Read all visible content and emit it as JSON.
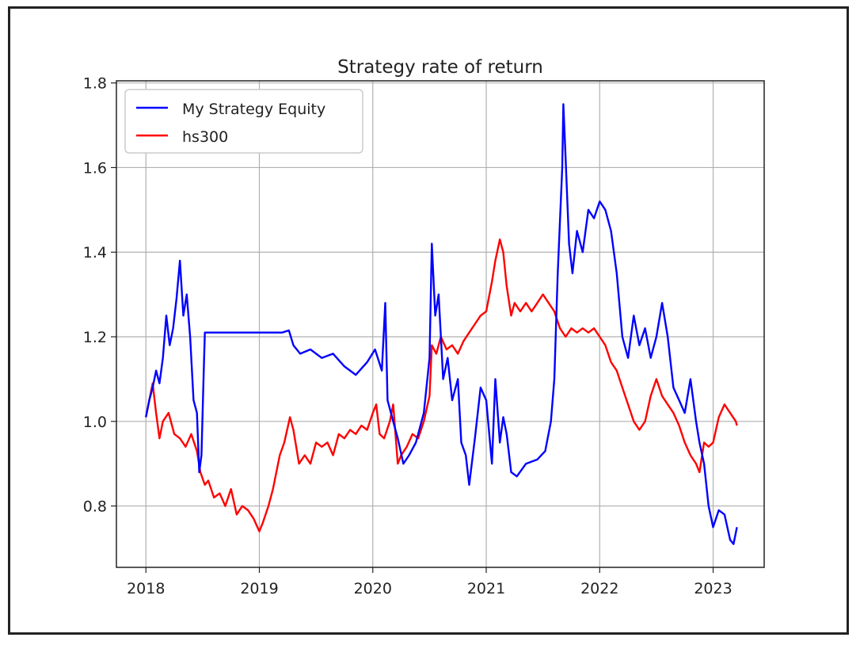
{
  "chart_data": {
    "type": "line",
    "title": "Strategy rate of return",
    "xlabel": "",
    "ylabel": "",
    "xlim": [
      2017.74,
      2023.45
    ],
    "ylim": [
      0.655,
      1.805
    ],
    "x_ticks": [
      {
        "value": 2018,
        "label": "2018"
      },
      {
        "value": 2019,
        "label": "2019"
      },
      {
        "value": 2020,
        "label": "2020"
      },
      {
        "value": 2021,
        "label": "2021"
      },
      {
        "value": 2022,
        "label": "2022"
      },
      {
        "value": 2023,
        "label": "2023"
      }
    ],
    "y_ticks": [
      {
        "value": 0.8,
        "label": "0.8"
      },
      {
        "value": 1.0,
        "label": "1.0"
      },
      {
        "value": 1.2,
        "label": "1.2"
      },
      {
        "value": 1.4,
        "label": "1.4"
      },
      {
        "value": 1.6,
        "label": "1.6"
      },
      {
        "value": 1.8,
        "label": "1.8"
      }
    ],
    "grid": true,
    "legend_position": "top-left",
    "series": [
      {
        "name": "My Strategy Equity",
        "color": "#0000ff",
        "points": [
          [
            2018.0,
            1.01
          ],
          [
            2018.03,
            1.05
          ],
          [
            2018.06,
            1.08
          ],
          [
            2018.09,
            1.12
          ],
          [
            2018.12,
            1.09
          ],
          [
            2018.15,
            1.15
          ],
          [
            2018.18,
            1.25
          ],
          [
            2018.21,
            1.18
          ],
          [
            2018.24,
            1.22
          ],
          [
            2018.27,
            1.29
          ],
          [
            2018.3,
            1.38
          ],
          [
            2018.33,
            1.25
          ],
          [
            2018.36,
            1.3
          ],
          [
            2018.39,
            1.2
          ],
          [
            2018.42,
            1.05
          ],
          [
            2018.45,
            1.02
          ],
          [
            2018.47,
            0.88
          ],
          [
            2018.49,
            0.92
          ],
          [
            2018.51,
            1.12
          ],
          [
            2018.52,
            1.21
          ],
          [
            2018.6,
            1.21
          ],
          [
            2018.8,
            1.21
          ],
          [
            2019.0,
            1.21
          ],
          [
            2019.2,
            1.21
          ],
          [
            2019.26,
            1.215
          ],
          [
            2019.3,
            1.18
          ],
          [
            2019.36,
            1.16
          ],
          [
            2019.45,
            1.17
          ],
          [
            2019.55,
            1.15
          ],
          [
            2019.65,
            1.16
          ],
          [
            2019.75,
            1.13
          ],
          [
            2019.85,
            1.11
          ],
          [
            2019.95,
            1.14
          ],
          [
            2020.02,
            1.17
          ],
          [
            2020.08,
            1.12
          ],
          [
            2020.11,
            1.28
          ],
          [
            2020.13,
            1.05
          ],
          [
            2020.18,
            1.0
          ],
          [
            2020.22,
            0.96
          ],
          [
            2020.27,
            0.9
          ],
          [
            2020.32,
            0.92
          ],
          [
            2020.38,
            0.95
          ],
          [
            2020.45,
            1.02
          ],
          [
            2020.5,
            1.15
          ],
          [
            2020.52,
            1.42
          ],
          [
            2020.55,
            1.25
          ],
          [
            2020.58,
            1.3
          ],
          [
            2020.62,
            1.1
          ],
          [
            2020.66,
            1.15
          ],
          [
            2020.7,
            1.05
          ],
          [
            2020.75,
            1.1
          ],
          [
            2020.78,
            0.95
          ],
          [
            2020.82,
            0.92
          ],
          [
            2020.85,
            0.85
          ],
          [
            2020.9,
            0.96
          ],
          [
            2020.95,
            1.08
          ],
          [
            2021.0,
            1.05
          ],
          [
            2021.05,
            0.9
          ],
          [
            2021.08,
            1.1
          ],
          [
            2021.12,
            0.95
          ],
          [
            2021.15,
            1.01
          ],
          [
            2021.18,
            0.97
          ],
          [
            2021.22,
            0.88
          ],
          [
            2021.27,
            0.87
          ],
          [
            2021.35,
            0.9
          ],
          [
            2021.45,
            0.91
          ],
          [
            2021.52,
            0.93
          ],
          [
            2021.57,
            1.0
          ],
          [
            2021.6,
            1.1
          ],
          [
            2021.63,
            1.35
          ],
          [
            2021.67,
            1.6
          ],
          [
            2021.68,
            1.75
          ],
          [
            2021.7,
            1.62
          ],
          [
            2021.73,
            1.42
          ],
          [
            2021.76,
            1.35
          ],
          [
            2021.8,
            1.45
          ],
          [
            2021.85,
            1.4
          ],
          [
            2021.9,
            1.5
          ],
          [
            2021.95,
            1.48
          ],
          [
            2022.0,
            1.52
          ],
          [
            2022.05,
            1.5
          ],
          [
            2022.1,
            1.45
          ],
          [
            2022.15,
            1.35
          ],
          [
            2022.2,
            1.2
          ],
          [
            2022.25,
            1.15
          ],
          [
            2022.3,
            1.25
          ],
          [
            2022.35,
            1.18
          ],
          [
            2022.4,
            1.22
          ],
          [
            2022.45,
            1.15
          ],
          [
            2022.5,
            1.2
          ],
          [
            2022.55,
            1.28
          ],
          [
            2022.6,
            1.2
          ],
          [
            2022.65,
            1.08
          ],
          [
            2022.7,
            1.05
          ],
          [
            2022.75,
            1.02
          ],
          [
            2022.8,
            1.1
          ],
          [
            2022.85,
            1.0
          ],
          [
            2022.88,
            0.95
          ],
          [
            2022.92,
            0.9
          ],
          [
            2022.96,
            0.8
          ],
          [
            2023.0,
            0.75
          ],
          [
            2023.05,
            0.79
          ],
          [
            2023.1,
            0.78
          ],
          [
            2023.15,
            0.72
          ],
          [
            2023.18,
            0.71
          ],
          [
            2023.21,
            0.75
          ]
        ]
      },
      {
        "name": "hs300",
        "color": "#ff0000",
        "points": [
          [
            2018.0,
            1.01
          ],
          [
            2018.03,
            1.05
          ],
          [
            2018.06,
            1.09
          ],
          [
            2018.09,
            1.02
          ],
          [
            2018.12,
            0.96
          ],
          [
            2018.15,
            1.0
          ],
          [
            2018.2,
            1.02
          ],
          [
            2018.25,
            0.97
          ],
          [
            2018.3,
            0.96
          ],
          [
            2018.35,
            0.94
          ],
          [
            2018.4,
            0.97
          ],
          [
            2018.45,
            0.93
          ],
          [
            2018.48,
            0.88
          ],
          [
            2018.52,
            0.85
          ],
          [
            2018.55,
            0.86
          ],
          [
            2018.6,
            0.82
          ],
          [
            2018.65,
            0.83
          ],
          [
            2018.7,
            0.8
          ],
          [
            2018.75,
            0.84
          ],
          [
            2018.8,
            0.78
          ],
          [
            2018.85,
            0.8
          ],
          [
            2018.9,
            0.79
          ],
          [
            2018.95,
            0.77
          ],
          [
            2019.0,
            0.74
          ],
          [
            2019.03,
            0.76
          ],
          [
            2019.08,
            0.8
          ],
          [
            2019.12,
            0.84
          ],
          [
            2019.18,
            0.92
          ],
          [
            2019.22,
            0.95
          ],
          [
            2019.27,
            1.01
          ],
          [
            2019.3,
            0.98
          ],
          [
            2019.35,
            0.9
          ],
          [
            2019.4,
            0.92
          ],
          [
            2019.45,
            0.9
          ],
          [
            2019.5,
            0.95
          ],
          [
            2019.55,
            0.94
          ],
          [
            2019.6,
            0.95
          ],
          [
            2019.65,
            0.92
          ],
          [
            2019.7,
            0.97
          ],
          [
            2019.75,
            0.96
          ],
          [
            2019.8,
            0.98
          ],
          [
            2019.85,
            0.97
          ],
          [
            2019.9,
            0.99
          ],
          [
            2019.95,
            0.98
          ],
          [
            2020.0,
            1.02
          ],
          [
            2020.03,
            1.04
          ],
          [
            2020.06,
            0.97
          ],
          [
            2020.1,
            0.96
          ],
          [
            2020.15,
            1.0
          ],
          [
            2020.18,
            1.04
          ],
          [
            2020.22,
            0.9
          ],
          [
            2020.25,
            0.92
          ],
          [
            2020.3,
            0.94
          ],
          [
            2020.35,
            0.97
          ],
          [
            2020.4,
            0.96
          ],
          [
            2020.45,
            1.0
          ],
          [
            2020.5,
            1.06
          ],
          [
            2020.52,
            1.18
          ],
          [
            2020.56,
            1.16
          ],
          [
            2020.6,
            1.2
          ],
          [
            2020.65,
            1.17
          ],
          [
            2020.7,
            1.18
          ],
          [
            2020.75,
            1.16
          ],
          [
            2020.8,
            1.19
          ],
          [
            2020.85,
            1.21
          ],
          [
            2020.9,
            1.23
          ],
          [
            2020.95,
            1.25
          ],
          [
            2021.0,
            1.26
          ],
          [
            2021.05,
            1.33
          ],
          [
            2021.08,
            1.38
          ],
          [
            2021.12,
            1.43
          ],
          [
            2021.15,
            1.4
          ],
          [
            2021.18,
            1.32
          ],
          [
            2021.22,
            1.25
          ],
          [
            2021.25,
            1.28
          ],
          [
            2021.3,
            1.26
          ],
          [
            2021.35,
            1.28
          ],
          [
            2021.4,
            1.26
          ],
          [
            2021.45,
            1.28
          ],
          [
            2021.5,
            1.3
          ],
          [
            2021.55,
            1.28
          ],
          [
            2021.6,
            1.26
          ],
          [
            2021.65,
            1.22
          ],
          [
            2021.7,
            1.2
          ],
          [
            2021.75,
            1.22
          ],
          [
            2021.8,
            1.21
          ],
          [
            2021.85,
            1.22
          ],
          [
            2021.9,
            1.21
          ],
          [
            2021.95,
            1.22
          ],
          [
            2022.0,
            1.2
          ],
          [
            2022.05,
            1.18
          ],
          [
            2022.1,
            1.14
          ],
          [
            2022.15,
            1.12
          ],
          [
            2022.2,
            1.08
          ],
          [
            2022.25,
            1.04
          ],
          [
            2022.3,
            1.0
          ],
          [
            2022.35,
            0.98
          ],
          [
            2022.4,
            1.0
          ],
          [
            2022.45,
            1.06
          ],
          [
            2022.5,
            1.1
          ],
          [
            2022.55,
            1.06
          ],
          [
            2022.6,
            1.04
          ],
          [
            2022.65,
            1.02
          ],
          [
            2022.7,
            0.99
          ],
          [
            2022.75,
            0.95
          ],
          [
            2022.8,
            0.92
          ],
          [
            2022.85,
            0.9
          ],
          [
            2022.88,
            0.88
          ],
          [
            2022.92,
            0.95
          ],
          [
            2022.96,
            0.94
          ],
          [
            2023.0,
            0.95
          ],
          [
            2023.05,
            1.01
          ],
          [
            2023.1,
            1.04
          ],
          [
            2023.15,
            1.02
          ],
          [
            2023.2,
            1.0
          ],
          [
            2023.21,
            0.99
          ]
        ]
      }
    ]
  }
}
